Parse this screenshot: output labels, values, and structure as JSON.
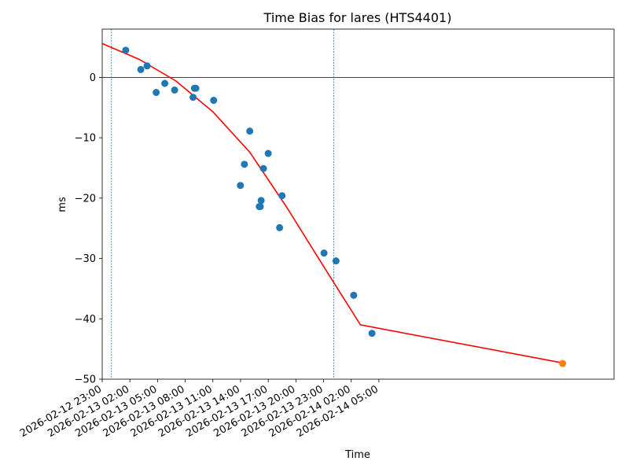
{
  "chart_data": {
    "type": "scatter",
    "title": "Time Bias for lares (HTS4401)",
    "xlabel": "Time",
    "ylabel": "ms",
    "xlim": [
      "2026-02-12 23:00",
      "2026-02-15 06:30"
    ],
    "ylim": [
      -50,
      8
    ],
    "yticks": [
      0,
      -10,
      -20,
      -30,
      -40,
      -50
    ],
    "xticks": [
      "2026-02-12 23:00",
      "2026-02-13 02:00",
      "2026-02-13 05:00",
      "2026-02-13 08:00",
      "2026-02-13 11:00",
      "2026-02-13 14:00",
      "2026-02-13 17:00",
      "2026-02-13 20:00",
      "2026-02-13 23:00",
      "2026-02-14 02:00",
      "2026-02-14 05:00"
    ],
    "grid": false,
    "zero_line": 0,
    "vlines": [
      "2026-02-13 00:00",
      "2026-02-14 00:06"
    ],
    "colors": {
      "points": "#1f77b4",
      "highlight": "#ff7f0e",
      "fit": "#ff0000",
      "vlines": "#1f77b4",
      "zero_line": "#000000"
    },
    "series": [
      {
        "points": [
          {
            "x": "2026-02-13 01:33",
            "y": 4.5
          },
          {
            "x": "2026-02-13 03:11",
            "y": 1.3
          },
          {
            "x": "2026-02-13 03:52",
            "y": 1.9
          },
          {
            "x": "2026-02-13 04:51",
            "y": -2.5
          },
          {
            "x": "2026-02-13 05:47",
            "y": -1.0
          },
          {
            "x": "2026-02-13 06:51",
            "y": -2.1
          },
          {
            "x": "2026-02-13 08:51",
            "y": -3.3
          },
          {
            "x": "2026-02-13 09:00",
            "y": -1.8
          },
          {
            "x": "2026-02-13 09:09",
            "y": -1.8
          },
          {
            "x": "2026-02-13 11:05",
            "y": -3.8
          },
          {
            "x": "2026-02-13 13:59",
            "y": -17.9
          },
          {
            "x": "2026-02-13 14:25",
            "y": -14.4
          },
          {
            "x": "2026-02-13 15:00",
            "y": -8.9
          },
          {
            "x": "2026-02-13 16:02",
            "y": -21.4
          },
          {
            "x": "2026-02-13 16:08",
            "y": -21.4
          },
          {
            "x": "2026-02-13 16:14",
            "y": -20.4
          },
          {
            "x": "2026-02-13 16:29",
            "y": -15.1
          },
          {
            "x": "2026-02-13 17:00",
            "y": -12.6
          },
          {
            "x": "2026-02-13 18:14",
            "y": -24.9
          },
          {
            "x": "2026-02-13 18:30",
            "y": -19.6
          },
          {
            "x": "2026-02-13 23:03",
            "y": -29.1
          },
          {
            "x": "2026-02-14 00:21",
            "y": -30.4
          },
          {
            "x": "2026-02-14 02:16",
            "y": -36.1
          },
          {
            "x": "2026-02-14 04:15",
            "y": -42.4
          }
        ]
      },
      {
        "points": [
          {
            "x": "2026-02-15 00:55",
            "y": -47.4
          }
        ]
      },
      {
        "type": "line",
        "points": [
          {
            "x": "2026-02-12 23:00",
            "y": 5.6
          },
          {
            "x": "2026-02-13 03:00",
            "y": 3.0
          },
          {
            "x": "2026-02-13 07:00",
            "y": -0.6
          },
          {
            "x": "2026-02-13 11:00",
            "y": -5.7
          },
          {
            "x": "2026-02-13 15:00",
            "y": -12.4
          },
          {
            "x": "2026-02-13 19:00",
            "y": -21.5
          },
          {
            "x": "2026-02-13 23:00",
            "y": -31.3
          },
          {
            "x": "2026-02-14 03:00",
            "y": -41.0
          },
          {
            "x": "2026-02-15 00:55",
            "y": -47.3
          }
        ]
      }
    ]
  }
}
